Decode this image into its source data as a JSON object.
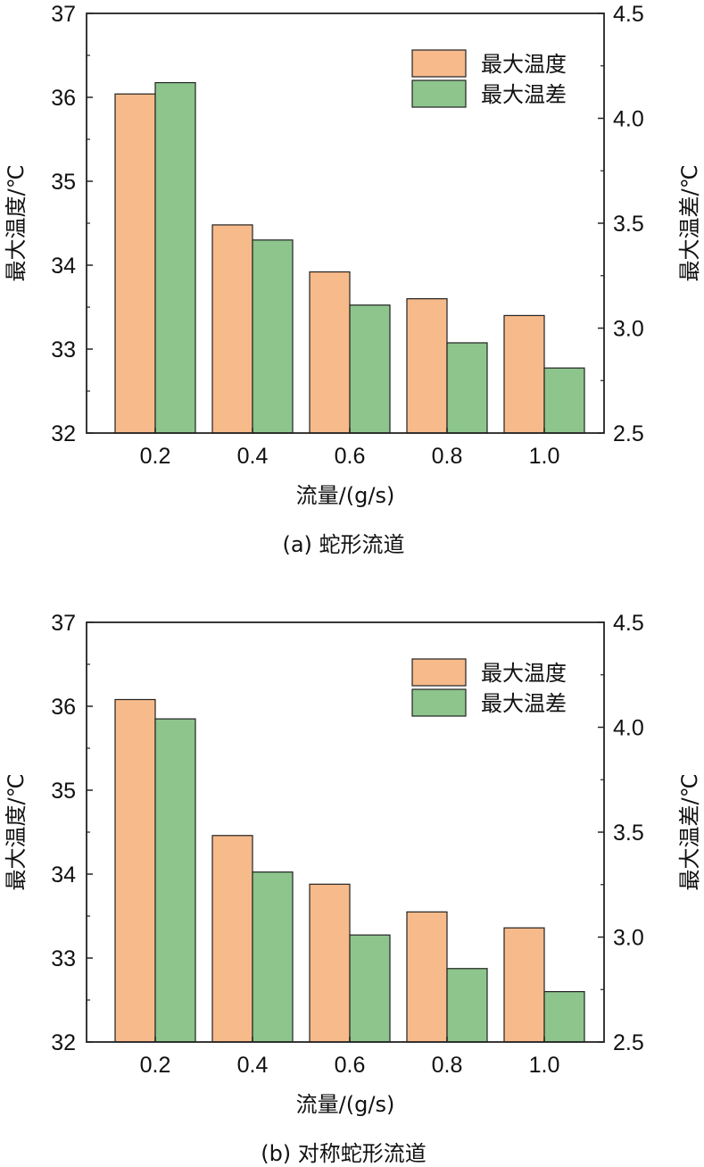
{
  "chart_data": [
    {
      "type": "bar",
      "caption": "(a) 蛇形流道",
      "categories": [
        "0.2",
        "0.4",
        "0.6",
        "0.8",
        "1.0"
      ],
      "xlabel": "流量/(g/s)",
      "ylabel": "最大温度/℃",
      "ylabel_right": "最大温差/℃",
      "ylim": [
        32,
        37
      ],
      "ylim_right": [
        2.5,
        4.5
      ],
      "yticks": [
        "32",
        "33",
        "34",
        "35",
        "36",
        "37"
      ],
      "yticks_right": [
        "2.5",
        "3.0",
        "3.5",
        "4.0",
        "4.5"
      ],
      "legend_position": "top-right",
      "grid": false,
      "series": [
        {
          "name": "最大温度",
          "axis": "left",
          "color": "#F7BA8B",
          "values": [
            36.04,
            34.48,
            33.92,
            33.6,
            33.4
          ]
        },
        {
          "name": "最大温差",
          "axis": "right",
          "color": "#8DC58C",
          "values": [
            4.17,
            3.42,
            3.11,
            2.93,
            2.81
          ]
        }
      ]
    },
    {
      "type": "bar",
      "caption": "(b) 对称蛇形流道",
      "categories": [
        "0.2",
        "0.4",
        "0.6",
        "0.8",
        "1.0"
      ],
      "xlabel": "流量/(g/s)",
      "ylabel": "最大温度/℃",
      "ylabel_right": "最大温差/℃",
      "ylim": [
        32,
        37
      ],
      "ylim_right": [
        2.5,
        4.5
      ],
      "yticks": [
        "32",
        "33",
        "34",
        "35",
        "36",
        "37"
      ],
      "yticks_right": [
        "2.5",
        "3.0",
        "3.5",
        "4.0",
        "4.5"
      ],
      "legend_position": "top-right",
      "grid": false,
      "series": [
        {
          "name": "最大温度",
          "axis": "left",
          "color": "#F7BA8B",
          "values": [
            36.08,
            34.46,
            33.88,
            33.55,
            33.36
          ]
        },
        {
          "name": "最大温差",
          "axis": "right",
          "color": "#8DC58C",
          "values": [
            4.04,
            3.31,
            3.01,
            2.85,
            2.74
          ]
        }
      ]
    }
  ]
}
